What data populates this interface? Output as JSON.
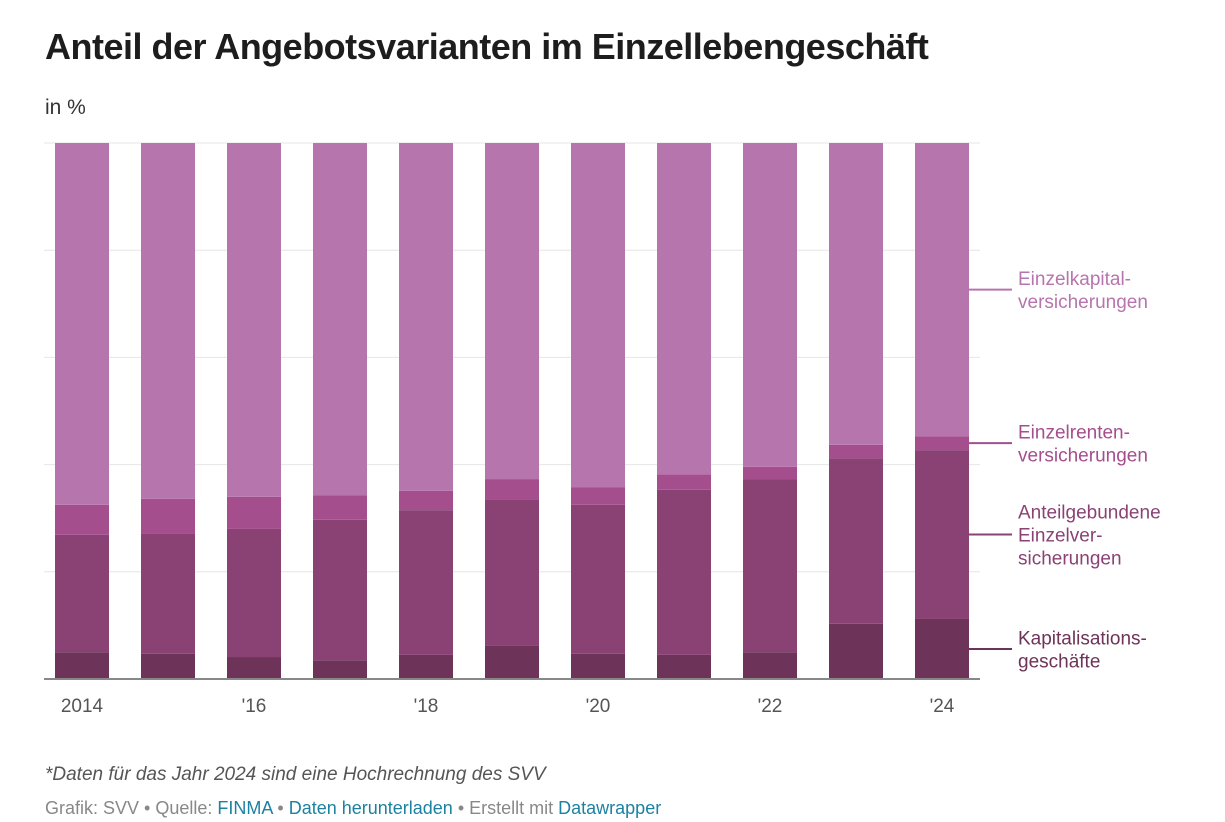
{
  "chart_data": {
    "type": "bar",
    "stacked": true,
    "title": "Anteil der Angebotsvarianten im Einzellebengeschäft",
    "subtitle": "in %",
    "categories": [
      "2014",
      "2015",
      "2016",
      "2017",
      "2018",
      "2019",
      "2020",
      "2021",
      "2022",
      "2023",
      "2024"
    ],
    "tick_labels": [
      "2014",
      "",
      "'16",
      "",
      "'18",
      "",
      "'20",
      "",
      "'22",
      "",
      "'24"
    ],
    "ylim": [
      0,
      100
    ],
    "grid": true,
    "legend_placement": "right (direct labels)",
    "series": [
      {
        "name": "Kapitalisations-geschäfte",
        "label_lines": [
          "Kapitalisations-",
          "geschäfte"
        ],
        "color": "#6e3358",
        "values": [
          5.0,
          4.7,
          4.1,
          3.5,
          4.5,
          6.3,
          4.7,
          4.5,
          5.0,
          10.3,
          11.2
        ]
      },
      {
        "name": "Anteilgebundene Einzelver-sicherungen",
        "label_lines": [
          "Anteilgebundene",
          "Einzelver-",
          "sicherungen"
        ],
        "color": "#8a4275",
        "values": [
          21.9,
          22.5,
          23.9,
          26.2,
          27.0,
          27.1,
          27.8,
          30.8,
          32.3,
          30.9,
          31.5
        ]
      },
      {
        "name": "Einzelrenten-versicherungen",
        "label_lines": [
          "Einzelrenten-",
          "versicherungen"
        ],
        "color": "#a54e8e",
        "values": [
          5.6,
          6.4,
          6.0,
          4.6,
          3.6,
          3.9,
          3.3,
          2.9,
          2.3,
          2.5,
          2.6
        ]
      },
      {
        "name": "Einzelkapital-versicherungen",
        "label_lines": [
          "Einzelkapital-",
          "versicherungen"
        ],
        "color": "#b775ad",
        "values": [
          67.5,
          66.4,
          66.0,
          65.7,
          64.9,
          62.7,
          64.2,
          61.8,
          60.4,
          56.3,
          54.7
        ]
      }
    ]
  },
  "note": "*Daten für das Jahr 2024 sind eine Hochrechnung des SVV",
  "footer": {
    "prefix": "Grafik: SVV • Quelle: ",
    "source_link": "FINMA",
    "sep1": " • ",
    "download_link": "Daten herunterladen",
    "sep2": " • Erstellt mit ",
    "tool_link": "Datawrapper",
    "link_color": "#1d81a2"
  }
}
